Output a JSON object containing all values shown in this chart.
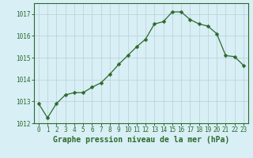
{
  "x": [
    0,
    1,
    2,
    3,
    4,
    5,
    6,
    7,
    8,
    9,
    10,
    11,
    12,
    13,
    14,
    15,
    16,
    17,
    18,
    19,
    20,
    21,
    22,
    23
  ],
  "y": [
    1012.9,
    1012.25,
    1012.9,
    1013.3,
    1013.4,
    1013.4,
    1013.65,
    1013.85,
    1014.25,
    1014.7,
    1015.1,
    1015.5,
    1015.85,
    1016.55,
    1016.65,
    1017.1,
    1017.1,
    1016.75,
    1016.55,
    1016.45,
    1016.1,
    1015.1,
    1015.05,
    1014.65
  ],
  "line_color": "#2d6a2d",
  "marker": "D",
  "marker_size": 2.5,
  "bg_color": "#d8eff5",
  "grid_color": "#b8cfd6",
  "title": "Graphe pression niveau de la mer (hPa)",
  "ylim": [
    1012,
    1017.5
  ],
  "yticks": [
    1012,
    1013,
    1014,
    1015,
    1016,
    1017
  ],
  "xlim": [
    -0.5,
    23.5
  ],
  "xticks": [
    0,
    1,
    2,
    3,
    4,
    5,
    6,
    7,
    8,
    9,
    10,
    11,
    12,
    13,
    14,
    15,
    16,
    17,
    18,
    19,
    20,
    21,
    22,
    23
  ],
  "tick_color": "#2d6a2d",
  "tick_fontsize": 5.5,
  "title_fontsize": 7.0,
  "spine_color": "#2d6a2d",
  "linewidth": 0.9
}
